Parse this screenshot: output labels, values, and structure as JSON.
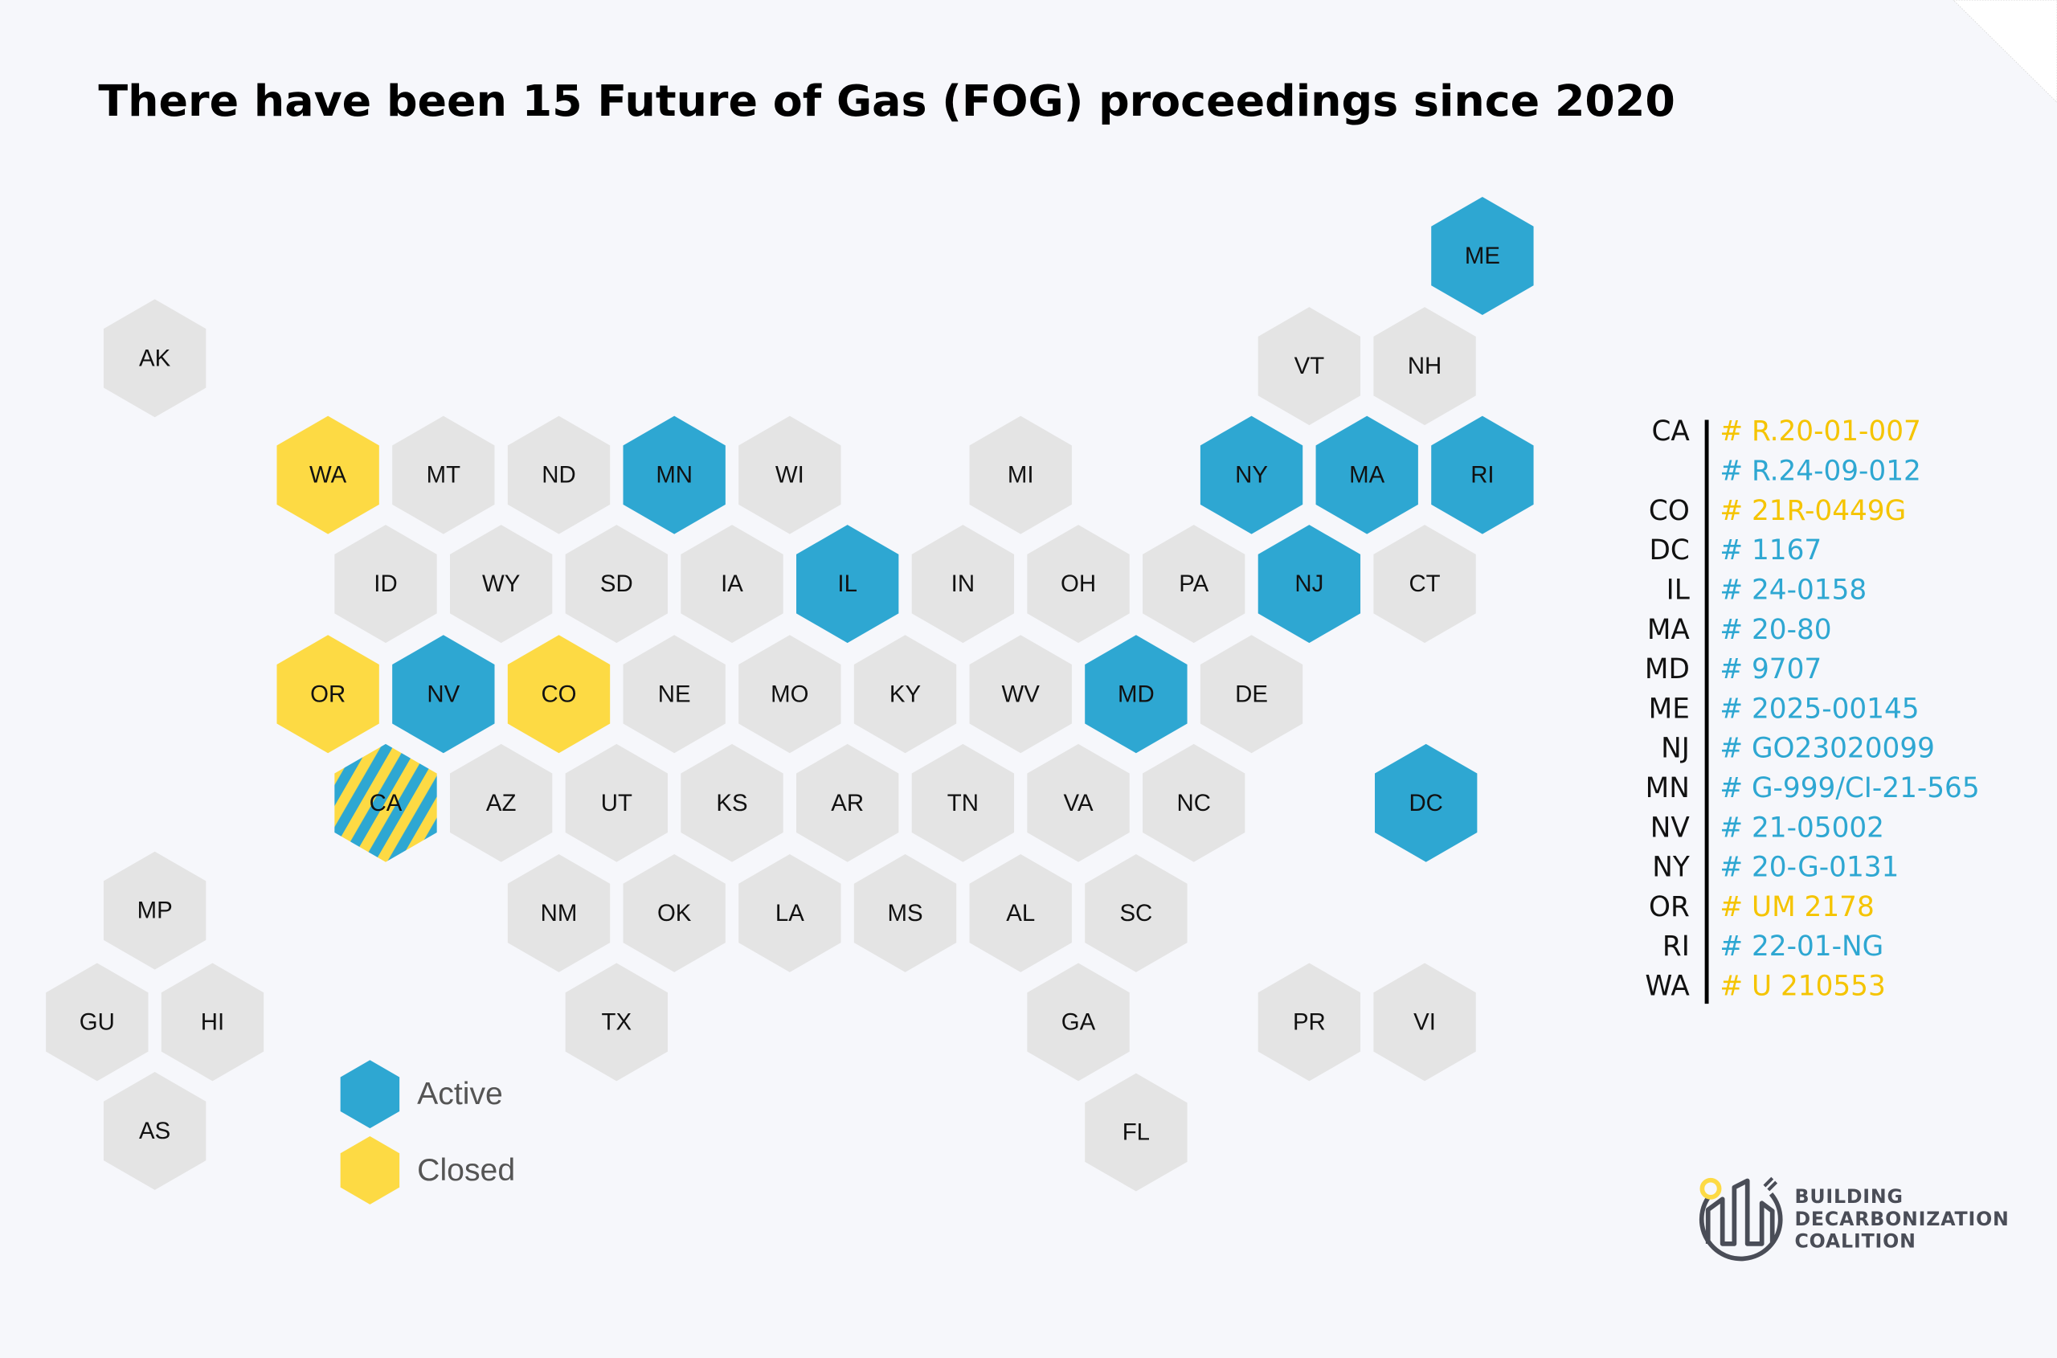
{
  "title": "There have been 15 Future of Gas (FOG) proceedings since 2020",
  "colors": {
    "active": "#2EA7D2",
    "closed": "#FDDA44",
    "none": "#E4E4E4",
    "background": "#F6F7FB",
    "active_text": "#2EA7D2",
    "closed_text": "#F5C400"
  },
  "states": [
    {
      "label": "ME",
      "status": "active"
    },
    {
      "label": "AK",
      "status": "none"
    },
    {
      "label": "VT",
      "status": "none"
    },
    {
      "label": "NH",
      "status": "none"
    },
    {
      "label": "WA",
      "status": "closed"
    },
    {
      "label": "MT",
      "status": "none"
    },
    {
      "label": "ND",
      "status": "none"
    },
    {
      "label": "MN",
      "status": "active"
    },
    {
      "label": "WI",
      "status": "none"
    },
    {
      "label": "MI",
      "status": "none"
    },
    {
      "label": "NY",
      "status": "active"
    },
    {
      "label": "MA",
      "status": "active"
    },
    {
      "label": "RI",
      "status": "active"
    },
    {
      "label": "ID",
      "status": "none"
    },
    {
      "label": "WY",
      "status": "none"
    },
    {
      "label": "SD",
      "status": "none"
    },
    {
      "label": "IA",
      "status": "none"
    },
    {
      "label": "IL",
      "status": "active"
    },
    {
      "label": "IN",
      "status": "none"
    },
    {
      "label": "OH",
      "status": "none"
    },
    {
      "label": "PA",
      "status": "none"
    },
    {
      "label": "NJ",
      "status": "active"
    },
    {
      "label": "CT",
      "status": "none"
    },
    {
      "label": "OR",
      "status": "closed"
    },
    {
      "label": "NV",
      "status": "active"
    },
    {
      "label": "CO",
      "status": "closed"
    },
    {
      "label": "NE",
      "status": "none"
    },
    {
      "label": "MO",
      "status": "none"
    },
    {
      "label": "KY",
      "status": "none"
    },
    {
      "label": "WV",
      "status": "none"
    },
    {
      "label": "MD",
      "status": "active"
    },
    {
      "label": "DE",
      "status": "none"
    },
    {
      "label": "CA",
      "status": "both"
    },
    {
      "label": "AZ",
      "status": "none"
    },
    {
      "label": "UT",
      "status": "none"
    },
    {
      "label": "KS",
      "status": "none"
    },
    {
      "label": "AR",
      "status": "none"
    },
    {
      "label": "TN",
      "status": "none"
    },
    {
      "label": "VA",
      "status": "none"
    },
    {
      "label": "NC",
      "status": "none"
    },
    {
      "label": "DC",
      "status": "active"
    },
    {
      "label": "MP",
      "status": "none"
    },
    {
      "label": "NM",
      "status": "none"
    },
    {
      "label": "OK",
      "status": "none"
    },
    {
      "label": "LA",
      "status": "none"
    },
    {
      "label": "MS",
      "status": "none"
    },
    {
      "label": "AL",
      "status": "none"
    },
    {
      "label": "SC",
      "status": "none"
    },
    {
      "label": "GU",
      "status": "none"
    },
    {
      "label": "HI",
      "status": "none"
    },
    {
      "label": "TX",
      "status": "none"
    },
    {
      "label": "GA",
      "status": "none"
    },
    {
      "label": "PR",
      "status": "none"
    },
    {
      "label": "VI",
      "status": "none"
    },
    {
      "label": "AS",
      "status": "none"
    },
    {
      "label": "FL",
      "status": "none"
    }
  ],
  "legend": [
    {
      "label": "Active",
      "status": "active"
    },
    {
      "label": "Closed",
      "status": "closed"
    }
  ],
  "proceedings": [
    {
      "state": "CA",
      "code": "# R.20-01-007",
      "status": "closed"
    },
    {
      "state": "",
      "code": "# R.24-09-012",
      "status": "active"
    },
    {
      "state": "CO",
      "code": "# 21R-0449G",
      "status": "closed"
    },
    {
      "state": "DC",
      "code": "# 1167",
      "status": "active"
    },
    {
      "state": "IL",
      "code": "# 24-0158",
      "status": "active"
    },
    {
      "state": "MA",
      "code": "# 20-80",
      "status": "active"
    },
    {
      "state": "MD",
      "code": "# 9707",
      "status": "active"
    },
    {
      "state": "ME",
      "code": "# 2025-00145",
      "status": "active"
    },
    {
      "state": "NJ",
      "code": "# GO23020099",
      "status": "active"
    },
    {
      "state": "MN",
      "code": "# G-999/CI-21-565",
      "status": "active"
    },
    {
      "state": "NV",
      "code": "# 21-05002",
      "status": "active"
    },
    {
      "state": "NY",
      "code": "# 20-G-0131",
      "status": "active"
    },
    {
      "state": "OR",
      "code": "# UM 2178",
      "status": "closed"
    },
    {
      "state": "RI",
      "code": "# 22-01-NG",
      "status": "active"
    },
    {
      "state": "WA",
      "code": "# U 210553",
      "status": "closed"
    }
  ],
  "logo": {
    "lines": [
      "BUILDING",
      "DECARBONIZATION",
      "COALITION"
    ]
  }
}
